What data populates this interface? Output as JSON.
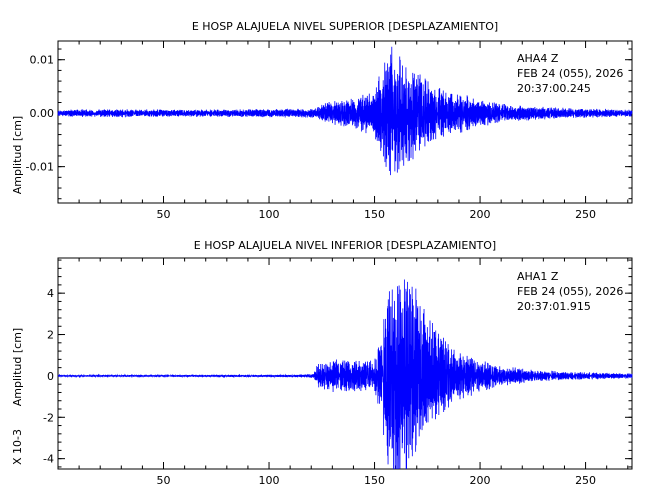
{
  "chart_data": [
    {
      "type": "line",
      "title": "E HOSP ALAJUELA NIVEL SUPERIOR [DESPLAZAMIENTO]",
      "ylabel": "Amplitud [cm]",
      "xlabel": "",
      "xlim": [
        0,
        272
      ],
      "ylim": [
        -0.0168,
        0.0135
      ],
      "xticks": [
        50,
        100,
        150,
        200,
        250
      ],
      "yticks": [
        0.01,
        0.0,
        -0.01
      ],
      "ytick_labels": [
        "0.01",
        "0.00",
        "-0.01"
      ],
      "annotation": [
        "AHA4  Z",
        "FEB 24 (055), 2026",
        "20:37:00.245"
      ],
      "series_color": "#0000ff",
      "grid": false,
      "envelope": {
        "t": [
          0,
          20,
          60,
          100,
          122,
          128,
          140,
          150,
          154,
          156,
          158,
          160,
          165,
          170,
          175,
          180,
          190,
          200,
          215,
          240,
          272
        ],
        "amp": [
          0.0006,
          0.0008,
          0.0007,
          0.0008,
          0.0009,
          0.0022,
          0.0028,
          0.0045,
          0.009,
          0.0125,
          0.0135,
          0.012,
          0.0105,
          0.0085,
          0.0065,
          0.005,
          0.0038,
          0.0028,
          0.0016,
          0.001,
          0.0007
        ]
      }
    },
    {
      "type": "line",
      "title": "E HOSP ALAJUELA NIVEL INFERIOR [DESPLAZAMIENTO]",
      "ylabel": "Amplitud [cm]",
      "scale_label": "X 10-3",
      "xlabel": "",
      "xlim": [
        0,
        272
      ],
      "ylim": [
        -4.5,
        5.7
      ],
      "xticks": [
        50,
        100,
        150,
        200,
        250
      ],
      "yticks": [
        4,
        2,
        0,
        -2,
        -4
      ],
      "ytick_labels": [
        "4",
        "2",
        "0",
        "-2",
        "-4"
      ],
      "annotation": [
        "AHA1  Z",
        "FEB 24 (055), 2026",
        "20:37:01.915"
      ],
      "series_color": "#0000ff",
      "grid": false,
      "envelope": {
        "t": [
          0,
          60,
          110,
          121,
          123,
          130,
          145,
          150,
          153,
          155,
          157,
          160,
          165,
          170,
          175,
          180,
          185,
          190,
          200,
          210,
          225,
          240,
          272
        ],
        "amp": [
          0.04,
          0.05,
          0.06,
          0.1,
          0.6,
          0.8,
          0.8,
          0.9,
          2.0,
          3.5,
          4.8,
          5.5,
          5.2,
          4.2,
          3.0,
          2.2,
          1.6,
          1.2,
          0.8,
          0.5,
          0.3,
          0.22,
          0.12
        ]
      }
    }
  ]
}
